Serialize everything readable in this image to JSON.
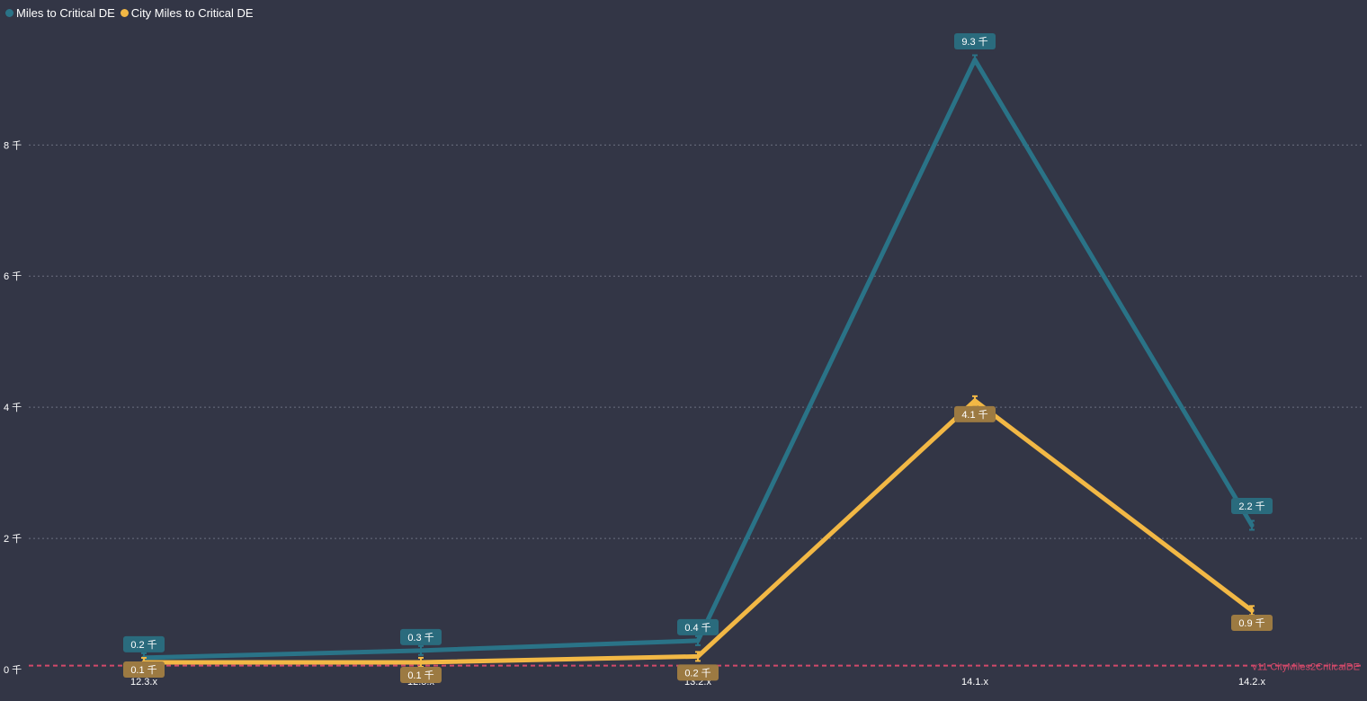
{
  "legend": [
    {
      "label": "Miles to Critical DE",
      "color": "#2a7387"
    },
    {
      "label": "City Miles to Critical DE",
      "color": "#f2b845"
    }
  ],
  "chart_data": {
    "type": "line",
    "categories": [
      "12.3.x",
      "12.5.x",
      "13.2.x",
      "14.1.x",
      "14.2.x"
    ],
    "y_tick_labels": [
      "0 千",
      "2 千",
      "4 千",
      "6 千",
      "8 千"
    ],
    "y_tick_values": [
      0,
      2000,
      4000,
      6000,
      8000
    ],
    "ylim": [
      0,
      9800
    ],
    "grid": true,
    "legend_position": "top-left",
    "series": [
      {
        "name": "Miles to Critical DE",
        "color": "#2a7387",
        "label_bg": "#2a6b7d",
        "values": [
          180,
          290,
          440,
          9300,
          2200
        ],
        "data_labels": [
          "0.2 千",
          "0.3 千",
          "0.4 千",
          "9.3 千",
          "2.2 千"
        ]
      },
      {
        "name": "City Miles to Critical DE",
        "color": "#f2b845",
        "label_bg": "#9c7a42",
        "values": [
          110,
          110,
          200,
          4100,
          900
        ],
        "data_labels": [
          "0.1 千",
          "0.1 千",
          "0.2 千",
          "4.1 千",
          "0.9 千"
        ]
      }
    ],
    "reference_line": {
      "value": 60,
      "label": "v11 CityMiles2CriticalDE",
      "color": "#d2496a"
    }
  }
}
